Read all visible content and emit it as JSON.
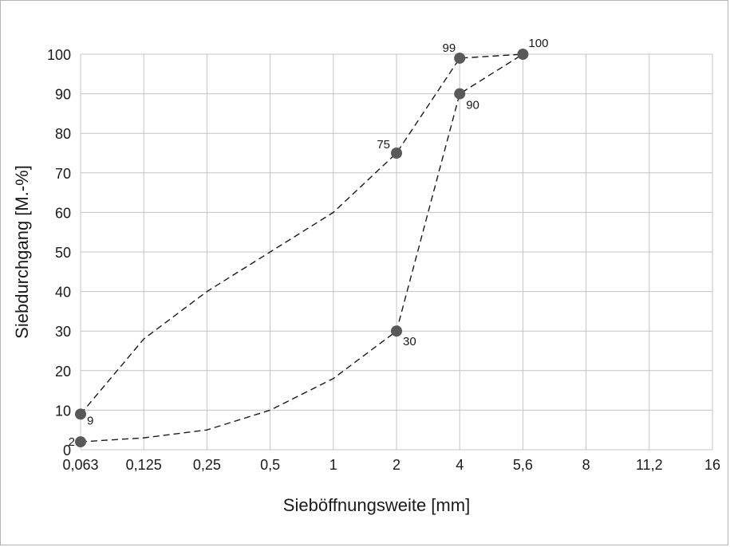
{
  "chart_data": {
    "type": "line",
    "xlabel": "Sieböffnungsweite [mm]",
    "ylabel": "Siebdurchgang [M.-%]",
    "categories": [
      "0,063",
      "0,125",
      "0,25",
      "0,5",
      "1",
      "2",
      "4",
      "5,6",
      "8",
      "11,2",
      "16"
    ],
    "yticks": [
      "0",
      "10",
      "20",
      "30",
      "40",
      "50",
      "60",
      "70",
      "80",
      "90",
      "100"
    ],
    "ylim": [
      0,
      100
    ],
    "grid": true,
    "line_style": "dashed",
    "series": [
      {
        "x": [
          "0,063",
          "0,125",
          "0,25",
          "0,5",
          "1",
          "2",
          "4",
          "5,6"
        ],
        "values": [
          9,
          28,
          40,
          50,
          60,
          75,
          99,
          100
        ],
        "markers": [
          {
            "x": "0,063",
            "value": 9,
            "label": "9"
          },
          {
            "x": "2",
            "value": 75,
            "label": "75"
          },
          {
            "x": "4",
            "value": 99,
            "label": "99"
          },
          {
            "x": "5,6",
            "value": 100,
            "label": "100"
          }
        ]
      },
      {
        "x": [
          "0,063",
          "0,125",
          "0,25",
          "0,5",
          "1",
          "2",
          "4",
          "5,6"
        ],
        "values": [
          2,
          3,
          5,
          10,
          18,
          30,
          90,
          100
        ],
        "markers": [
          {
            "x": "0,063",
            "value": 2,
            "label": "2"
          },
          {
            "x": "2",
            "value": 30,
            "label": "30"
          },
          {
            "x": "4",
            "value": 90,
            "label": "90"
          }
        ]
      }
    ],
    "colors": {
      "line": "#1a1a1a",
      "marker": "#595959",
      "grid": "#c4c4c4"
    }
  }
}
